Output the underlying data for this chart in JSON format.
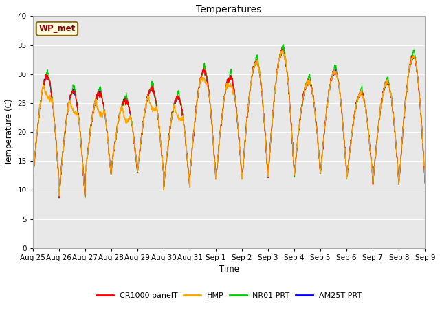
{
  "title": "Temperatures",
  "xlabel": "Time",
  "ylabel": "Temperature (C)",
  "ylim": [
    0,
    40
  ],
  "plot_bg_color": "#e8e8e8",
  "fig_bg_color": "#ffffff",
  "grid_color": "#ffffff",
  "annotation_text": "WP_met",
  "annotation_bg": "#ffffdd",
  "annotation_border": "#8b6914",
  "annotation_text_color": "#8b0000",
  "x_tick_labels": [
    "Aug 25",
    "Aug 26",
    "Aug 27",
    "Aug 28",
    "Aug 29",
    "Aug 30",
    "Aug 31",
    "Sep 1",
    "Sep 2",
    "Sep 3",
    "Sep 4",
    "Sep 5",
    "Sep 6",
    "Sep 7",
    "Sep 8",
    "Sep 9"
  ],
  "series": [
    {
      "label": "CR1000 panelT",
      "color": "#ff0000"
    },
    {
      "label": "HMP",
      "color": "#ffa500"
    },
    {
      "label": "NR01 PRT",
      "color": "#00cc00"
    },
    {
      "label": "AM25T PRT",
      "color": "#0000ff"
    }
  ],
  "day_peaks": [
    29.5,
    27.0,
    26.7,
    25.5,
    27.5,
    26.0,
    30.5,
    29.5,
    32.0,
    34.0,
    28.8,
    30.5,
    26.7,
    28.5,
    33.0
  ],
  "day_mins": [
    12.0,
    9.0,
    12.5,
    13.5,
    13.0,
    10.5,
    12.2,
    12.0,
    12.0,
    13.0,
    13.0,
    13.0,
    12.0,
    11.2,
    11.5
  ],
  "peak_pos": [
    0.55,
    0.55,
    0.55,
    0.55,
    0.55,
    0.55,
    0.55,
    0.55,
    0.55,
    0.55,
    0.55,
    0.55,
    0.55,
    0.55,
    0.55
  ],
  "n_days": 15,
  "points_per_day": 144
}
